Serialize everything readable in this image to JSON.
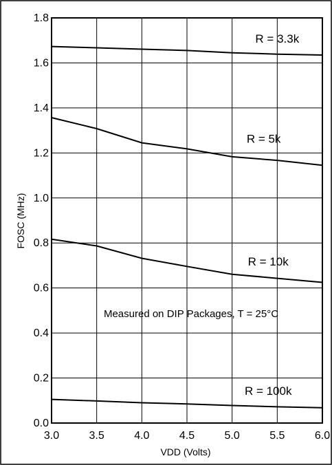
{
  "chart_data": {
    "type": "line",
    "xlabel": "VDD (Volts)",
    "ylabel": "FOSC (MHz)",
    "xlim": [
      3.0,
      6.0
    ],
    "ylim": [
      0.0,
      1.8
    ],
    "x_ticks": [
      "3.0",
      "3.5",
      "4.0",
      "4.5",
      "5.0",
      "5.5",
      "6.0"
    ],
    "y_ticks": [
      "0.0",
      "0.2",
      "0.4",
      "0.6",
      "0.8",
      "1.0",
      "1.2",
      "1.4",
      "1.6",
      "1.8"
    ],
    "grid": true,
    "annotation": "Measured on DIP Packages, T = 25°C",
    "series": [
      {
        "name": "R = 3.3k",
        "x": [
          3.0,
          3.5,
          4.0,
          4.5,
          5.0,
          5.5,
          6.0
        ],
        "values": [
          1.673,
          1.667,
          1.661,
          1.655,
          1.645,
          1.639,
          1.635
        ],
        "label_at": [
          5.5,
          1.69
        ]
      },
      {
        "name": "R = 5k",
        "x": [
          3.0,
          3.5,
          4.0,
          4.5,
          5.0,
          5.5,
          6.0
        ],
        "values": [
          1.357,
          1.308,
          1.245,
          1.218,
          1.183,
          1.167,
          1.145
        ],
        "label_at": [
          5.35,
          1.245
        ]
      },
      {
        "name": "R = 10k",
        "x": [
          3.0,
          3.5,
          4.0,
          4.5,
          5.0,
          5.5,
          6.0
        ],
        "values": [
          0.817,
          0.787,
          0.732,
          0.696,
          0.661,
          0.643,
          0.625
        ],
        "label_at": [
          5.4,
          0.7
        ]
      },
      {
        "name": "R = 100k",
        "x": [
          3.0,
          3.5,
          4.0,
          4.5,
          5.0,
          5.5,
          6.0
        ],
        "values": [
          0.105,
          0.098,
          0.09,
          0.085,
          0.078,
          0.072,
          0.068
        ],
        "label_at": [
          5.4,
          0.125
        ]
      }
    ]
  }
}
